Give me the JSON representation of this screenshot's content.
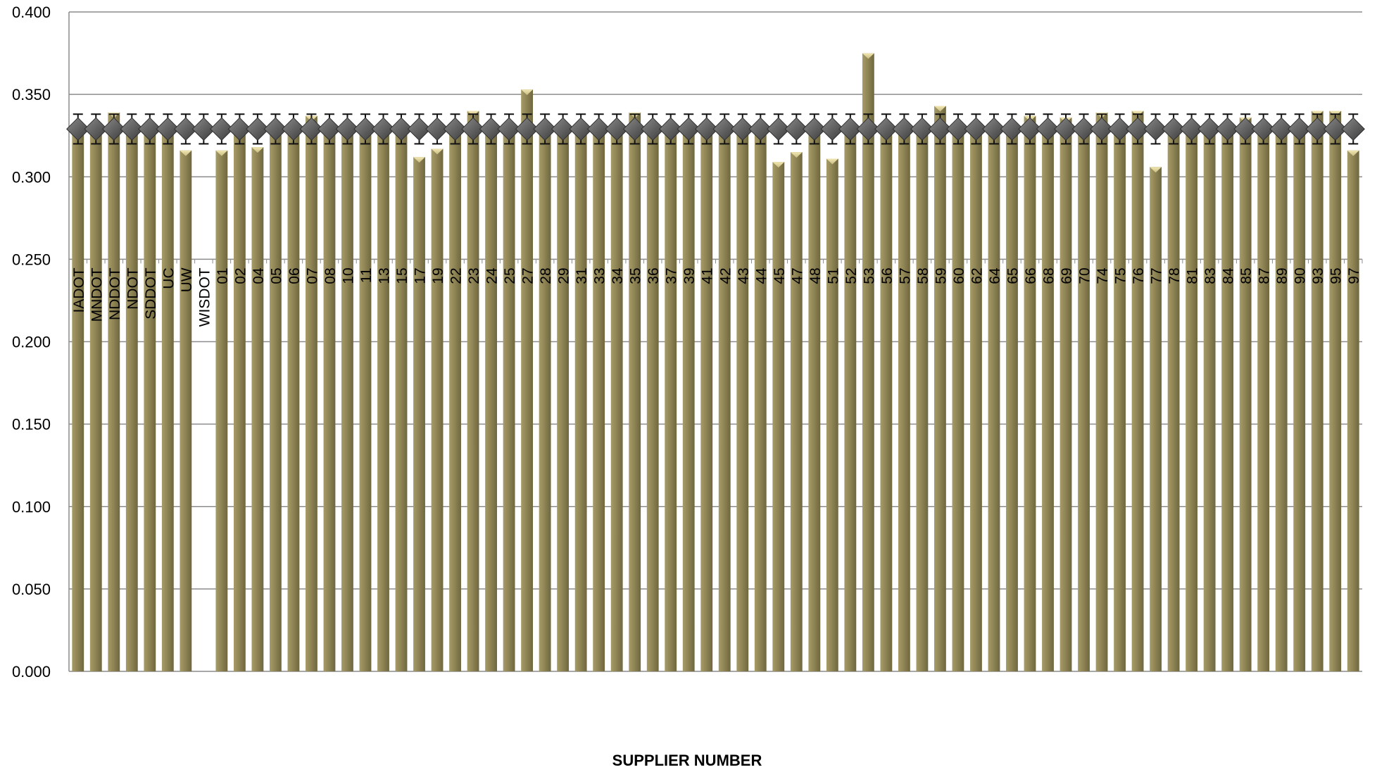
{
  "chart_data": {
    "type": "bar",
    "title": "",
    "xlabel": "SUPPLIER NUMBER",
    "ylabel": "",
    "ylim": [
      0,
      0.4
    ],
    "yticks": [
      "0.000",
      "0.050",
      "0.100",
      "0.150",
      "0.200",
      "0.250",
      "0.300",
      "0.350",
      "0.400"
    ],
    "grid": true,
    "categories": [
      "IADOT",
      "MNDOT",
      "NDDOT",
      "NDOT",
      "SDDOT",
      "UC",
      "UW",
      "WISDOT",
      "01",
      "02",
      "04",
      "05",
      "06",
      "07",
      "08",
      "10",
      "11",
      "13",
      "15",
      "17",
      "19",
      "22",
      "23",
      "24",
      "25",
      "27",
      "28",
      "29",
      "31",
      "33",
      "34",
      "35",
      "36",
      "37",
      "39",
      "41",
      "42",
      "43",
      "44",
      "45",
      "47",
      "48",
      "51",
      "52",
      "53",
      "56",
      "57",
      "58",
      "59",
      "60",
      "62",
      "64",
      "65",
      "66",
      "68",
      "69",
      "70",
      "74",
      "75",
      "76",
      "77",
      "78",
      "81",
      "83",
      "84",
      "85",
      "87",
      "89",
      "90",
      "93",
      "95",
      "97"
    ],
    "series": [
      {
        "type": "bar",
        "color": "#8c8253",
        "values": [
          0.329,
          0.329,
          0.339,
          0.329,
          0.329,
          0.329,
          0.316,
          null,
          0.316,
          0.329,
          0.318,
          0.329,
          0.329,
          0.337,
          0.329,
          0.329,
          0.329,
          0.329,
          0.329,
          0.312,
          0.317,
          0.329,
          0.34,
          0.329,
          0.329,
          0.353,
          0.329,
          0.329,
          0.329,
          0.329,
          0.329,
          0.339,
          0.329,
          0.329,
          0.329,
          0.329,
          0.329,
          0.329,
          0.329,
          0.309,
          0.315,
          0.329,
          0.311,
          0.329,
          0.375,
          0.329,
          0.329,
          0.329,
          0.343,
          0.329,
          0.329,
          0.329,
          0.329,
          0.337,
          0.329,
          0.336,
          0.329,
          0.339,
          0.329,
          0.34,
          0.306,
          0.329,
          0.329,
          0.329,
          0.329,
          0.336,
          0.329,
          0.329,
          0.329,
          0.34,
          0.34,
          0.316
        ]
      },
      {
        "type": "line-marker",
        "marker": "diamond",
        "color": "#555555",
        "constant_value": 0.329,
        "error_bar": 0.009
      }
    ]
  }
}
